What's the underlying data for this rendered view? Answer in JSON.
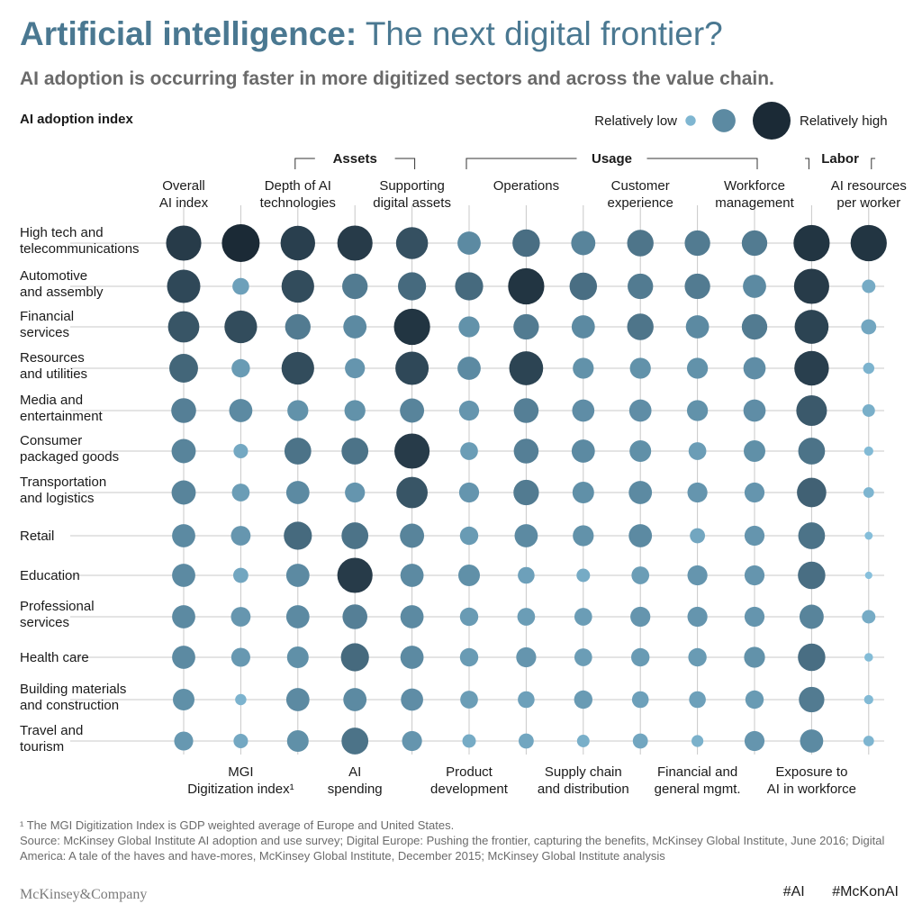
{
  "header": {
    "title_bold": "Artificial intelligence:",
    "title_rest": " The next digital frontier?",
    "subtitle": "AI adoption is occurring faster in more digitized sectors and across the value chain."
  },
  "legend": {
    "label_low": "Relatively low",
    "label_high": "Relatively high"
  },
  "footer": {
    "footnote": "¹ The MGI Digitization Index is GDP weighted average of Europe and United States.",
    "source": "Source: McKinsey Global Institute AI adoption and use survey; Digital Europe: Pushing the frontier, capturing the benefits, McKinsey Global Institute, June 2016; Digital America: A tale of the haves and have-mores, McKinsey Global Institute, December 2015; McKinsey Global Institute analysis",
    "brand": "McKinsey&Company",
    "hashtags": [
      "#AI",
      "#McKonAI"
    ]
  },
  "chart_data": {
    "type": "bubble-matrix",
    "title": "AI adoption index",
    "groups": [
      {
        "name": "Assets",
        "columns": [
          2,
          4
        ]
      },
      {
        "name": "Usage",
        "columns": [
          5,
          10
        ]
      },
      {
        "name": "Labor",
        "columns": [
          11,
          12
        ]
      }
    ],
    "columns": [
      {
        "label": "Overall\nAI index",
        "label_pos": "top"
      },
      {
        "label": "MGI\nDigitization index¹",
        "label_pos": "bottom"
      },
      {
        "label": "Depth of AI\ntechnologies",
        "label_pos": "top"
      },
      {
        "label": "AI\nspending",
        "label_pos": "bottom"
      },
      {
        "label": "Supporting\ndigital assets",
        "label_pos": "top"
      },
      {
        "label": "Product\ndevelopment",
        "label_pos": "bottom"
      },
      {
        "label": "Operations",
        "label_pos": "top"
      },
      {
        "label": "Supply chain\nand distribution",
        "label_pos": "bottom"
      },
      {
        "label": "Customer\nexperience",
        "label_pos": "top"
      },
      {
        "label": "Financial and\ngeneral mgmt.",
        "label_pos": "bottom"
      },
      {
        "label": "Workforce\nmanagement",
        "label_pos": "top"
      },
      {
        "label": "Exposure to\nAI in workforce",
        "label_pos": "bottom"
      },
      {
        "label": "AI resources\nper worker",
        "label_pos": "top"
      }
    ],
    "scale": "relative (low to high), values estimated on a 0 to 1 scale",
    "rows": [
      {
        "sector": "High tech and\ntelecommunications",
        "values": [
          0.92,
          1.0,
          0.9,
          0.92,
          0.82,
          0.55,
          0.68,
          0.58,
          0.65,
          0.62,
          0.62,
          0.95,
          0.95
        ]
      },
      {
        "sector": "Automotive\nand assembly",
        "values": [
          0.86,
          0.35,
          0.84,
          0.62,
          0.7,
          0.7,
          0.95,
          0.68,
          0.62,
          0.62,
          0.55,
          0.92,
          0.25
        ]
      },
      {
        "sector": "Financial\nservices",
        "values": [
          0.8,
          0.84,
          0.62,
          0.55,
          0.95,
          0.48,
          0.62,
          0.55,
          0.65,
          0.55,
          0.62,
          0.88,
          0.3
        ]
      },
      {
        "sector": "Resources\nand utilities",
        "values": [
          0.72,
          0.4,
          0.84,
          0.45,
          0.86,
          0.55,
          0.88,
          0.48,
          0.48,
          0.48,
          0.52,
          0.9,
          0.18
        ]
      },
      {
        "sector": "Media and\nentertainment",
        "values": [
          0.6,
          0.55,
          0.48,
          0.48,
          0.58,
          0.45,
          0.6,
          0.52,
          0.52,
          0.48,
          0.52,
          0.78,
          0.22
        ]
      },
      {
        "sector": "Consumer\npackaged goods",
        "values": [
          0.58,
          0.28,
          0.66,
          0.66,
          0.92,
          0.38,
          0.6,
          0.55,
          0.5,
          0.38,
          0.5,
          0.66,
          0.12
        ]
      },
      {
        "sector": "Transportation\nand logistics",
        "values": [
          0.58,
          0.38,
          0.55,
          0.45,
          0.8,
          0.45,
          0.62,
          0.5,
          0.55,
          0.45,
          0.45,
          0.74,
          0.16
        ]
      },
      {
        "sector": "Retail",
        "values": [
          0.55,
          0.44,
          0.7,
          0.66,
          0.58,
          0.4,
          0.55,
          0.48,
          0.55,
          0.3,
          0.45,
          0.66,
          0.08
        ]
      },
      {
        "sector": "Education",
        "values": [
          0.55,
          0.3,
          0.55,
          0.92,
          0.55,
          0.5,
          0.35,
          0.25,
          0.38,
          0.45,
          0.45,
          0.68,
          0.06
        ]
      },
      {
        "sector": "Professional\nservices",
        "values": [
          0.55,
          0.44,
          0.55,
          0.6,
          0.55,
          0.4,
          0.38,
          0.38,
          0.45,
          0.45,
          0.45,
          0.58,
          0.25
        ]
      },
      {
        "sector": "Health care",
        "values": [
          0.55,
          0.42,
          0.5,
          0.7,
          0.55,
          0.4,
          0.45,
          0.38,
          0.4,
          0.4,
          0.48,
          0.68,
          0.1
        ]
      },
      {
        "sector": "Building materials\nand construction",
        "values": [
          0.5,
          0.18,
          0.55,
          0.55,
          0.52,
          0.38,
          0.35,
          0.4,
          0.35,
          0.35,
          0.4,
          0.62,
          0.12
        ]
      },
      {
        "sector": "Travel and\ntourism",
        "values": [
          0.42,
          0.28,
          0.5,
          0.66,
          0.45,
          0.25,
          0.3,
          0.22,
          0.3,
          0.2,
          0.45,
          0.55,
          0.16
        ]
      }
    ],
    "legend_levels": [
      0.15,
      0.55,
      1.0
    ],
    "colors": {
      "low": "#8cc7e3",
      "mid": "#5c8aa2",
      "high": "#1b2a36",
      "grid": "#c8c8c8"
    }
  }
}
